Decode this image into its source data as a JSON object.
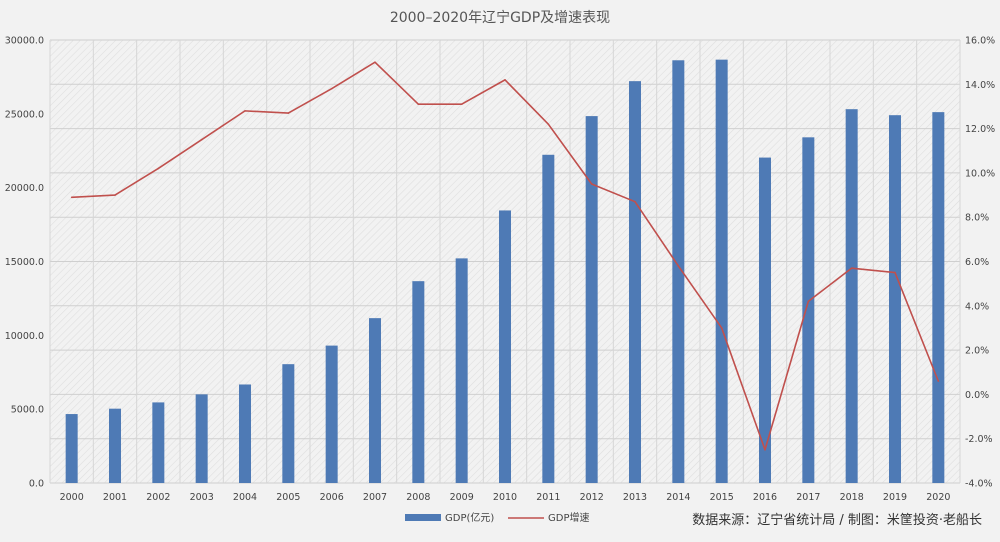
{
  "chart_data": {
    "type": "bar",
    "title": "2000–2020年辽宁GDP及增速表现",
    "categories": [
      "2000",
      "2001",
      "2002",
      "2003",
      "2004",
      "2005",
      "2006",
      "2007",
      "2008",
      "2009",
      "2010",
      "2011",
      "2012",
      "2013",
      "2014",
      "2015",
      "2016",
      "2017",
      "2018",
      "2019",
      "2020"
    ],
    "series": [
      {
        "name": "GDP(亿元)",
        "type": "bar",
        "axis": "left",
        "color": "#4e7ab5",
        "values": [
          4669,
          5033,
          5458,
          6003,
          6672,
          8047,
          9305,
          11164,
          13668,
          15212,
          18457,
          22227,
          24846,
          27213,
          28627,
          28669,
          22038,
          23409,
          25315,
          24909,
          25115
        ]
      },
      {
        "name": "GDP增速",
        "type": "line",
        "axis": "right",
        "color": "#c0504d",
        "values": [
          8.9,
          9.0,
          10.2,
          11.5,
          12.8,
          12.7,
          13.8,
          15.0,
          13.1,
          13.1,
          14.2,
          12.2,
          9.5,
          8.7,
          5.8,
          3.0,
          -2.5,
          4.2,
          5.7,
          5.5,
          0.6
        ]
      }
    ],
    "yleft": {
      "lim": [
        0,
        30000
      ],
      "ticks": [
        "0.0",
        "5000.0",
        "10000.0",
        "15000.0",
        "20000.0",
        "25000.0",
        "30000.0"
      ]
    },
    "yright": {
      "lim": [
        -4,
        16
      ],
      "ticks": [
        "-4.0%",
        "-2.0%",
        "0.0%",
        "2.0%",
        "4.0%",
        "6.0%",
        "8.0%",
        "10.0%",
        "12.0%",
        "14.0%",
        "16.0%"
      ]
    },
    "legend_position": "bottom-center",
    "grid": true
  },
  "source_note": "数据来源：辽宁省统计局 / 制图：米筐投资·老船长"
}
